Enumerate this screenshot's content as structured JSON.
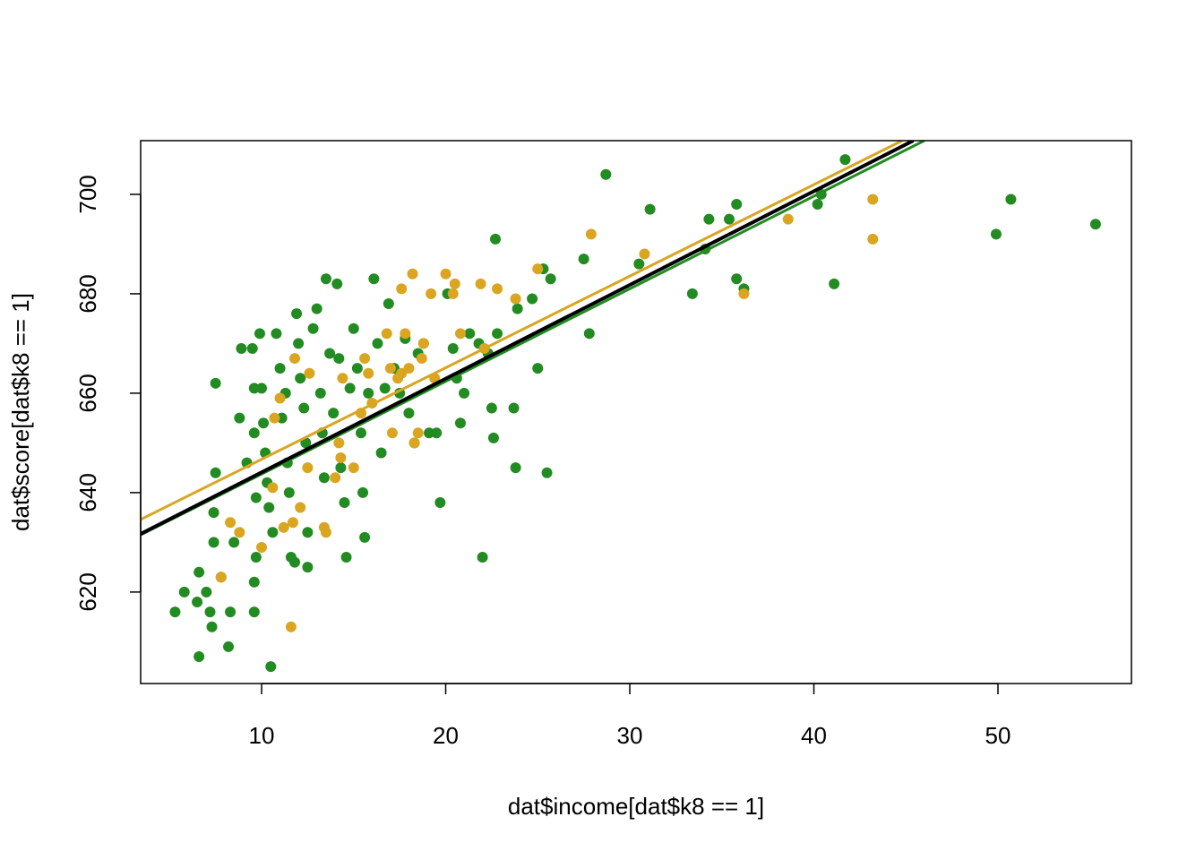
{
  "chart_data": {
    "type": "scatter",
    "xlabel": "dat$income[dat$k8 == 1]",
    "ylabel": "dat$score[dat$k8 == 1]",
    "xlim": [
      3.43,
      57.25
    ],
    "ylim": [
      601.6,
      710.8
    ],
    "xticks": [
      10,
      20,
      30,
      40,
      50
    ],
    "yticks": [
      620,
      640,
      660,
      680,
      700
    ],
    "series": [
      {
        "color": "#228b22",
        "x": [
          5.3,
          5.8,
          6.6,
          6.5,
          6.6,
          7.0,
          7.2,
          7.3,
          7.4,
          7.5,
          7.5,
          7.4,
          7.8,
          8.2,
          8.3,
          8.5,
          8.8,
          8.9,
          9.2,
          9.5,
          9.6,
          9.6,
          9.7,
          9.7,
          9.6,
          9.6,
          9.9,
          10.0,
          10.1,
          10.2,
          10.3,
          10.4,
          10.5,
          10.6,
          10.8,
          11.0,
          11.1,
          11.3,
          11.4,
          11.5,
          11.6,
          11.8,
          11.9,
          12.0,
          12.1,
          12.3,
          12.4,
          12.5,
          12.5,
          12.8,
          13.0,
          13.2,
          13.3,
          13.4,
          13.5,
          13.7,
          13.9,
          14.1,
          14.2,
          14.3,
          14.5,
          14.6,
          14.8,
          15.0,
          15.2,
          15.4,
          15.5,
          15.6,
          15.8,
          16.1,
          16.3,
          16.5,
          16.7,
          16.9,
          17.2,
          17.5,
          17.8,
          18.0,
          18.3,
          18.5,
          18.8,
          19.1,
          19.5,
          19.7,
          20.1,
          20.4,
          20.6,
          20.8,
          21.0,
          21.3,
          21.8,
          22.0,
          22.3,
          22.5,
          22.6,
          22.7,
          22.8,
          23.7,
          23.8,
          23.9,
          24.7,
          25.0,
          25.3,
          25.5,
          25.7,
          27.5,
          27.8,
          28.7,
          30.5,
          31.1,
          33.4,
          34.1,
          34.3,
          35.4,
          35.8,
          35.8,
          36.2,
          40.2,
          40.4,
          41.1,
          41.7,
          49.9,
          50.7,
          55.3
        ],
        "values": [
          616,
          620,
          607,
          618,
          624,
          620,
          616,
          613,
          630,
          644,
          662,
          636,
          623,
          609,
          616,
          630,
          655,
          669,
          646,
          669,
          661,
          652,
          639,
          627,
          622,
          616,
          672,
          661,
          654,
          648,
          642,
          637,
          605,
          632,
          672,
          665,
          655,
          660,
          646,
          640,
          627,
          626,
          676,
          670,
          663,
          657,
          650,
          632,
          625,
          673,
          677,
          660,
          652,
          643,
          683,
          668,
          656,
          682,
          667,
          645,
          638,
          627,
          661,
          673,
          665,
          652,
          640,
          631,
          660,
          683,
          670,
          648,
          661,
          678,
          665,
          660,
          671,
          656,
          650,
          668,
          670,
          652,
          652,
          638,
          680,
          669,
          663,
          654,
          660,
          672,
          670,
          627,
          668,
          657,
          651,
          691,
          672,
          657,
          645,
          677,
          679,
          665,
          685,
          644,
          683,
          687,
          672,
          704,
          686,
          697,
          680,
          689,
          695,
          695,
          683,
          698,
          681,
          698,
          700,
          682,
          707,
          692,
          699,
          694
        ]
      },
      {
        "color": "#daa520",
        "x": [
          7.8,
          8.3,
          8.8,
          10.0,
          10.6,
          10.7,
          11.0,
          11.2,
          11.6,
          11.7,
          11.8,
          12.1,
          12.5,
          12.6,
          13.4,
          13.5,
          14.0,
          14.2,
          14.3,
          14.4,
          15.0,
          15.4,
          15.6,
          15.8,
          16.0,
          16.8,
          17.0,
          17.1,
          17.4,
          17.6,
          17.6,
          17.8,
          18.0,
          18.2,
          18.3,
          18.5,
          18.7,
          18.8,
          19.2,
          19.4,
          20.0,
          20.4,
          20.5,
          20.8,
          21.9,
          22.1,
          22.8,
          23.8,
          25.0,
          27.9,
          30.8,
          36.2,
          38.6,
          43.2,
          43.2
        ],
        "values": [
          623,
          634,
          632,
          629,
          641,
          655,
          659,
          633,
          613,
          634,
          667,
          637,
          645,
          664,
          633,
          632,
          643,
          650,
          647,
          663,
          645,
          656,
          667,
          664,
          658,
          672,
          665,
          652,
          663,
          664,
          681,
          672,
          665,
          684,
          650,
          652,
          667,
          670,
          680,
          663,
          684,
          680,
          682,
          672,
          682,
          669,
          681,
          679,
          685,
          692,
          688,
          680,
          695,
          699,
          691
        ]
      }
    ],
    "lines": [
      {
        "color": "#228b22",
        "x": [
          3.43,
          46.0
        ],
        "values": [
          631.5,
          710.8
        ]
      },
      {
        "color": "#daa520",
        "x": [
          3.43,
          44.8
        ],
        "values": [
          634.6,
          710.8
        ]
      },
      {
        "color": "#000000",
        "x": [
          3.43,
          45.4
        ],
        "values": [
          631.7,
          710.8
        ]
      }
    ]
  }
}
